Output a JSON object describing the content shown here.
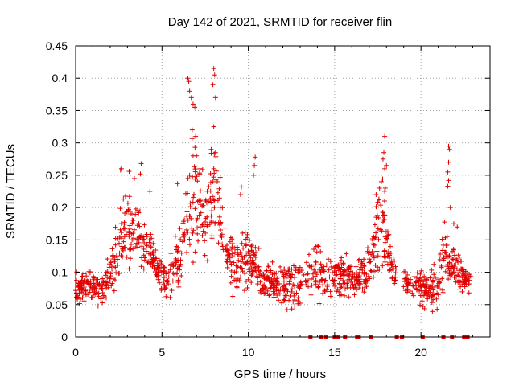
{
  "chart_data": {
    "type": "scatter",
    "title": "Day 142 of 2021, SRMTID for receiver flin",
    "xlabel": "GPS time / hours",
    "ylabel": "SRMTID / TECUs",
    "xlim": [
      0,
      24
    ],
    "ylim": [
      0,
      0.45
    ],
    "xticks": [
      "0",
      "5",
      "10",
      "15",
      "20"
    ],
    "xtick_values": [
      0,
      5,
      10,
      15,
      20
    ],
    "yticks": [
      "0",
      "0.05",
      "0.1",
      "0.15",
      "0.2",
      "0.25",
      "0.3",
      "0.35",
      "0.4",
      "0.45"
    ],
    "ytick_values": [
      0,
      0.05,
      0.1,
      0.15,
      0.2,
      0.25,
      0.3,
      0.35,
      0.4,
      0.45
    ],
    "grid": true,
    "marker": "plus",
    "color": "#e00000",
    "envelope": {
      "x": [
        0.0,
        0.5,
        1.0,
        1.5,
        2.0,
        2.3,
        2.6,
        3.0,
        3.3,
        3.6,
        3.9,
        4.2,
        4.6,
        5.0,
        5.3,
        5.6,
        6.0,
        6.3,
        6.6,
        6.9,
        7.2,
        7.5,
        7.8,
        8.0,
        8.3,
        8.6,
        9.0,
        9.3,
        9.6,
        9.9,
        10.2,
        10.5,
        10.8,
        11.2,
        11.6,
        12.0,
        12.4,
        12.8,
        13.2,
        13.6,
        14.0,
        14.4,
        14.8,
        15.2,
        15.6,
        16.0,
        16.4,
        16.8,
        17.1,
        17.4,
        17.7,
        18.0,
        18.3,
        18.6,
        19.0,
        19.4,
        19.8,
        20.2,
        20.6,
        21.0,
        21.4,
        21.7,
        22.0,
        22.3,
        22.6,
        22.9
      ],
      "low": [
        0.04,
        0.045,
        0.045,
        0.04,
        0.05,
        0.06,
        0.07,
        0.08,
        0.09,
        0.09,
        0.09,
        0.085,
        0.07,
        0.05,
        0.05,
        0.055,
        0.06,
        0.07,
        0.08,
        0.09,
        0.09,
        0.1,
        0.1,
        0.1,
        0.09,
        0.08,
        0.06,
        0.06,
        0.06,
        0.06,
        0.06,
        0.055,
        0.05,
        0.045,
        0.04,
        0.035,
        0.035,
        0.04,
        0.04,
        0.04,
        0.04,
        0.045,
        0.045,
        0.05,
        0.05,
        0.05,
        0.05,
        0.055,
        0.06,
        0.07,
        0.08,
        0.08,
        0.07,
        0.06,
        0.06,
        0.05,
        0.04,
        0.035,
        0.03,
        0.03,
        0.04,
        0.05,
        0.05,
        0.055,
        0.06,
        0.06
      ],
      "high": [
        0.1,
        0.11,
        0.11,
        0.1,
        0.14,
        0.18,
        0.22,
        0.24,
        0.23,
        0.22,
        0.2,
        0.19,
        0.15,
        0.12,
        0.12,
        0.14,
        0.18,
        0.22,
        0.3,
        0.33,
        0.29,
        0.24,
        0.3,
        0.35,
        0.27,
        0.2,
        0.18,
        0.17,
        0.18,
        0.17,
        0.18,
        0.15,
        0.12,
        0.12,
        0.12,
        0.12,
        0.12,
        0.12,
        0.13,
        0.15,
        0.16,
        0.14,
        0.13,
        0.14,
        0.14,
        0.13,
        0.12,
        0.14,
        0.18,
        0.22,
        0.27,
        0.22,
        0.14,
        0.13,
        0.11,
        0.11,
        0.11,
        0.11,
        0.12,
        0.13,
        0.2,
        0.17,
        0.15,
        0.13,
        0.12,
        0.11
      ]
    },
    "spikes": [
      {
        "x": 2.6,
        "y": 0.258
      },
      {
        "x": 2.65,
        "y": 0.26
      },
      {
        "x": 3.1,
        "y": 0.256
      },
      {
        "x": 3.4,
        "y": 0.245
      },
      {
        "x": 3.8,
        "y": 0.268
      },
      {
        "x": 3.75,
        "y": 0.252
      },
      {
        "x": 4.3,
        "y": 0.225
      },
      {
        "x": 5.9,
        "y": 0.237
      },
      {
        "x": 6.5,
        "y": 0.4
      },
      {
        "x": 6.55,
        "y": 0.395
      },
      {
        "x": 6.6,
        "y": 0.38
      },
      {
        "x": 6.7,
        "y": 0.37
      },
      {
        "x": 6.8,
        "y": 0.36
      },
      {
        "x": 6.9,
        "y": 0.355
      },
      {
        "x": 6.75,
        "y": 0.32
      },
      {
        "x": 6.95,
        "y": 0.31
      },
      {
        "x": 6.8,
        "y": 0.28
      },
      {
        "x": 7.0,
        "y": 0.28
      },
      {
        "x": 6.6,
        "y": 0.25
      },
      {
        "x": 7.2,
        "y": 0.26
      },
      {
        "x": 8.0,
        "y": 0.415
      },
      {
        "x": 8.05,
        "y": 0.405
      },
      {
        "x": 7.95,
        "y": 0.39
      },
      {
        "x": 8.1,
        "y": 0.37
      },
      {
        "x": 7.9,
        "y": 0.34
      },
      {
        "x": 8.0,
        "y": 0.325
      },
      {
        "x": 7.85,
        "y": 0.29
      },
      {
        "x": 8.1,
        "y": 0.285
      },
      {
        "x": 8.0,
        "y": 0.26
      },
      {
        "x": 8.2,
        "y": 0.24
      },
      {
        "x": 10.4,
        "y": 0.278
      },
      {
        "x": 10.35,
        "y": 0.265
      },
      {
        "x": 10.3,
        "y": 0.25
      },
      {
        "x": 9.6,
        "y": 0.232
      },
      {
        "x": 9.55,
        "y": 0.22
      },
      {
        "x": 17.9,
        "y": 0.31
      },
      {
        "x": 17.85,
        "y": 0.285
      },
      {
        "x": 17.8,
        "y": 0.275
      },
      {
        "x": 17.9,
        "y": 0.26
      },
      {
        "x": 18.0,
        "y": 0.265
      },
      {
        "x": 17.7,
        "y": 0.24
      },
      {
        "x": 17.6,
        "y": 0.23
      },
      {
        "x": 17.4,
        "y": 0.22
      },
      {
        "x": 21.6,
        "y": 0.295
      },
      {
        "x": 21.65,
        "y": 0.29
      },
      {
        "x": 21.6,
        "y": 0.27
      },
      {
        "x": 21.55,
        "y": 0.255
      },
      {
        "x": 21.6,
        "y": 0.242
      },
      {
        "x": 21.55,
        "y": 0.233
      },
      {
        "x": 21.7,
        "y": 0.2
      },
      {
        "x": 21.9,
        "y": 0.175
      },
      {
        "x": 22.1,
        "y": 0.17
      }
    ],
    "zero_markers_x": [
      13.6,
      14.2,
      14.5,
      15.0,
      15.2,
      15.6,
      16.3,
      16.4,
      17.1,
      18.6,
      18.9,
      20.1,
      21.3,
      21.8,
      22.5,
      22.6,
      22.7
    ]
  }
}
